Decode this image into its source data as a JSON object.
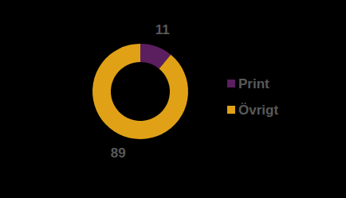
{
  "chart_data": {
    "type": "donut",
    "categories": [
      "Print",
      "Övrigt"
    ],
    "values": [
      11,
      89
    ],
    "colors": [
      "#5b1f5f",
      "#e0a116"
    ],
    "data_labels": true,
    "legend": "right"
  }
}
